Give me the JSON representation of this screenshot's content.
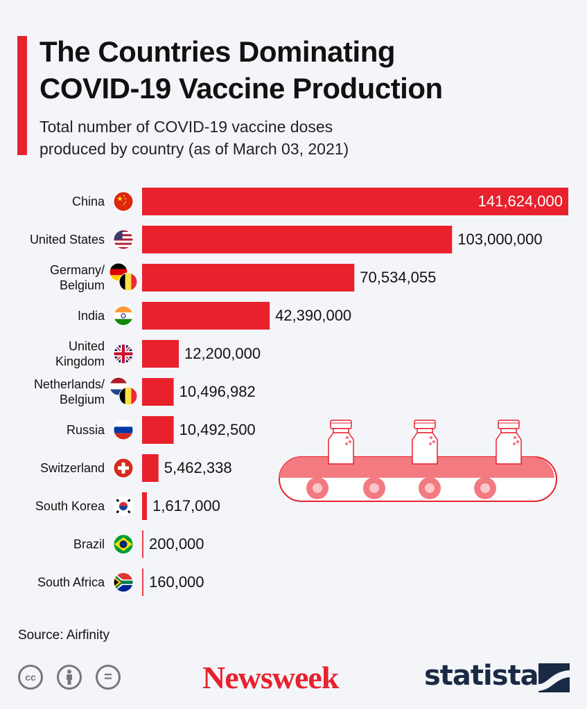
{
  "header": {
    "title_line1": "The Countries Dominating",
    "title_line2": "COVID-19 Vaccine Production",
    "subtitle_line1": "Total number of COVID-19 vaccine doses",
    "subtitle_line2": "produced by country (as of March 03, 2021)"
  },
  "chart_data": {
    "type": "bar",
    "orientation": "horizontal",
    "title": "The Countries Dominating COVID-19 Vaccine Production",
    "subtitle": "Total number of COVID-19 vaccine doses produced by country (as of March 03, 2021)",
    "categories": [
      "China",
      "United States",
      "Germany/ Belgium",
      "India",
      "United Kingdom",
      "Netherlands/ Belgium",
      "Russia",
      "Switzerland",
      "South Korea",
      "Brazil",
      "South Africa"
    ],
    "values": [
      141624000,
      103000000,
      70534055,
      42390000,
      12200000,
      10496982,
      10492500,
      5462338,
      1617000,
      200000,
      160000
    ],
    "value_labels": [
      "141,624,000",
      "103,000,000",
      "70,534,055",
      "42,390,000",
      "12,200,000",
      "10,496,982",
      "10,492,500",
      "5,462,338",
      "1,617,000",
      "200,000",
      "160,000"
    ],
    "label_lines": [
      [
        "China"
      ],
      [
        "United States"
      ],
      [
        "Germany/",
        "Belgium"
      ],
      [
        "India"
      ],
      [
        "United",
        "Kingdom"
      ],
      [
        "Netherlands/",
        "Belgium"
      ],
      [
        "Russia"
      ],
      [
        "Switzerland"
      ],
      [
        "South Korea"
      ],
      [
        "Brazil"
      ],
      [
        "South Africa"
      ]
    ],
    "flags": [
      [
        "flag-china"
      ],
      [
        "flag-usa"
      ],
      [
        "flag-germany",
        "flag-belgium"
      ],
      [
        "flag-india"
      ],
      [
        "flag-uk"
      ],
      [
        "flag-netherlands",
        "flag-belgium"
      ],
      [
        "flag-russia"
      ],
      [
        "flag-switzerland"
      ],
      [
        "flag-south-korea"
      ],
      [
        "flag-brazil"
      ],
      [
        "flag-south-africa"
      ]
    ],
    "xlim": [
      0,
      141624000
    ],
    "bar_color": "#e8212d",
    "grid": false,
    "legend": "none"
  },
  "footer": {
    "source": "Source: Airfinity",
    "cc_icons": [
      "cc-icon",
      "attribution-icon",
      "no-derivatives-icon"
    ],
    "cc_symbols": [
      "cc",
      "=",
      ""
    ],
    "newsweek": "Newsweek",
    "statista": "statista"
  },
  "colors": {
    "accent": "#e8212d",
    "background": "#f3f5f9",
    "statista_navy": "#1a2a44"
  }
}
